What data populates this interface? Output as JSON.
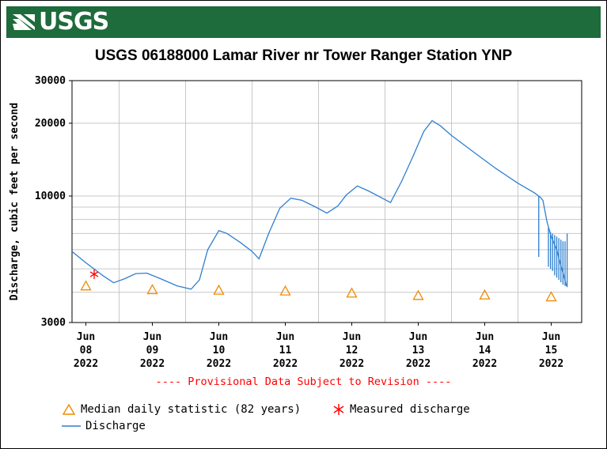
{
  "banner": {
    "logo_text": "USGS",
    "background_color": "#1e6b3c"
  },
  "footer": {
    "provisional_notice": "---- Provisional Data Subject to Revision ----"
  },
  "legend": {
    "median_label": "Median daily statistic (82 years)",
    "measured_label": "Measured discharge",
    "discharge_label": "Discharge"
  },
  "colors": {
    "discharge_line": "#2f7fcf",
    "median_marker": "#f08a00",
    "measured_marker": "#ff0000",
    "grid": "#c8c8c8"
  },
  "chart_data": {
    "type": "line",
    "title": "USGS 06188000 Lamar River nr Tower Ranger Station YNP",
    "ylabel": "Discharge, cubic feet per second",
    "xlabel": "",
    "y_scale": "log",
    "ylim": [
      3000,
      30000
    ],
    "y_ticks": [
      3000,
      10000,
      20000,
      30000
    ],
    "y_gridlines": [
      3000,
      4000,
      5000,
      6000,
      7000,
      8000,
      9000,
      10000,
      20000,
      30000
    ],
    "xlim": [
      "2022-06-07T19:00",
      "2022-06-15T11:00"
    ],
    "x_tick_labels": [
      {
        "date": "2022-06-08",
        "month": "Jun",
        "day": "08",
        "year": "2022"
      },
      {
        "date": "2022-06-09",
        "month": "Jun",
        "day": "09",
        "year": "2022"
      },
      {
        "date": "2022-06-10",
        "month": "Jun",
        "day": "10",
        "year": "2022"
      },
      {
        "date": "2022-06-11",
        "month": "Jun",
        "day": "11",
        "year": "2022"
      },
      {
        "date": "2022-06-12",
        "month": "Jun",
        "day": "12",
        "year": "2022"
      },
      {
        "date": "2022-06-13",
        "month": "Jun",
        "day": "13",
        "year": "2022"
      },
      {
        "date": "2022-06-14",
        "month": "Jun",
        "day": "14",
        "year": "2022"
      },
      {
        "date": "2022-06-15",
        "month": "Jun",
        "day": "15",
        "year": "2022"
      }
    ],
    "grid": true,
    "legend_position": "bottom-left",
    "series": [
      {
        "name": "Discharge",
        "kind": "line",
        "points": [
          [
            "2022-06-07T19:00",
            5900
          ],
          [
            "2022-06-08T00:00",
            5300
          ],
          [
            "2022-06-08T06:00",
            4700
          ],
          [
            "2022-06-08T10:00",
            4380
          ],
          [
            "2022-06-08T14:00",
            4550
          ],
          [
            "2022-06-08T18:00",
            4780
          ],
          [
            "2022-06-08T22:00",
            4800
          ],
          [
            "2022-06-09T03:00",
            4550
          ],
          [
            "2022-06-09T09:00",
            4250
          ],
          [
            "2022-06-09T14:00",
            4120
          ],
          [
            "2022-06-09T17:00",
            4500
          ],
          [
            "2022-06-09T20:00",
            6000
          ],
          [
            "2022-06-10T00:00",
            7200
          ],
          [
            "2022-06-10T03:00",
            7000
          ],
          [
            "2022-06-10T08:00",
            6400
          ],
          [
            "2022-06-10T12:00",
            5900
          ],
          [
            "2022-06-10T14:30",
            5500
          ],
          [
            "2022-06-10T18:00",
            7000
          ],
          [
            "2022-06-10T22:00",
            8900
          ],
          [
            "2022-06-11T02:00",
            9800
          ],
          [
            "2022-06-11T06:00",
            9600
          ],
          [
            "2022-06-11T11:00",
            9000
          ],
          [
            "2022-06-11T15:00",
            8500
          ],
          [
            "2022-06-11T19:00",
            9100
          ],
          [
            "2022-06-11T22:00",
            10100
          ],
          [
            "2022-06-12T02:00",
            11000
          ],
          [
            "2022-06-12T06:00",
            10500
          ],
          [
            "2022-06-12T11:00",
            9800
          ],
          [
            "2022-06-12T14:00",
            9400
          ],
          [
            "2022-06-12T18:00",
            11500
          ],
          [
            "2022-06-12T22:00",
            14500
          ],
          [
            "2022-06-13T02:00",
            18500
          ],
          [
            "2022-06-13T05:00",
            20500
          ],
          [
            "2022-06-13T08:00",
            19500
          ],
          [
            "2022-06-13T12:00",
            17800
          ],
          [
            "2022-06-13T20:00",
            15200
          ],
          [
            "2022-06-14T04:00",
            13000
          ],
          [
            "2022-06-14T12:00",
            11300
          ],
          [
            "2022-06-14T18:00",
            10300
          ],
          [
            "2022-06-14T20:00",
            9900
          ],
          [
            "2022-06-14T21:00",
            9600
          ],
          [
            "2022-06-14T22:30",
            7800
          ],
          [
            "2022-06-15T00:00",
            6800
          ],
          [
            "2022-06-15T02:00",
            6000
          ],
          [
            "2022-06-15T03:00",
            5400
          ],
          [
            "2022-06-15T04:30",
            4700
          ],
          [
            "2022-06-15T05:30",
            4250
          ]
        ],
        "spikes": [
          {
            "date": "2022-06-14T19:30",
            "from": 10000,
            "to": 5600
          },
          {
            "date": "2022-06-14T23:00",
            "from": 7400,
            "to": 5100
          },
          {
            "date": "2022-06-14T23:45",
            "from": 7100,
            "to": 5000
          },
          {
            "date": "2022-06-15T00:30",
            "from": 7000,
            "to": 4900
          },
          {
            "date": "2022-06-15T01:15",
            "from": 6900,
            "to": 4700
          },
          {
            "date": "2022-06-15T02:00",
            "from": 6800,
            "to": 4600
          },
          {
            "date": "2022-06-15T02:45",
            "from": 6700,
            "to": 4500
          },
          {
            "date": "2022-06-15T03:30",
            "from": 6600,
            "to": 4400
          },
          {
            "date": "2022-06-15T04:15",
            "from": 6500,
            "to": 4300
          },
          {
            "date": "2022-06-15T05:00",
            "from": 6500,
            "to": 4250
          },
          {
            "date": "2022-06-15T05:45",
            "from": 7000,
            "to": 4200
          }
        ]
      },
      {
        "name": "Median daily statistic (82 years)",
        "kind": "triangle",
        "points": [
          [
            "2022-06-08T00:00",
            4250
          ],
          [
            "2022-06-09T00:00",
            4100
          ],
          [
            "2022-06-10T00:00",
            4080
          ],
          [
            "2022-06-11T00:00",
            4050
          ],
          [
            "2022-06-12T00:00",
            3970
          ],
          [
            "2022-06-13T00:00",
            3880
          ],
          [
            "2022-06-14T00:00",
            3900
          ],
          [
            "2022-06-15T00:00",
            3830
          ]
        ]
      },
      {
        "name": "Measured discharge",
        "kind": "asterisk",
        "points": [
          [
            "2022-06-08T03:00",
            4750
          ]
        ]
      }
    ]
  }
}
